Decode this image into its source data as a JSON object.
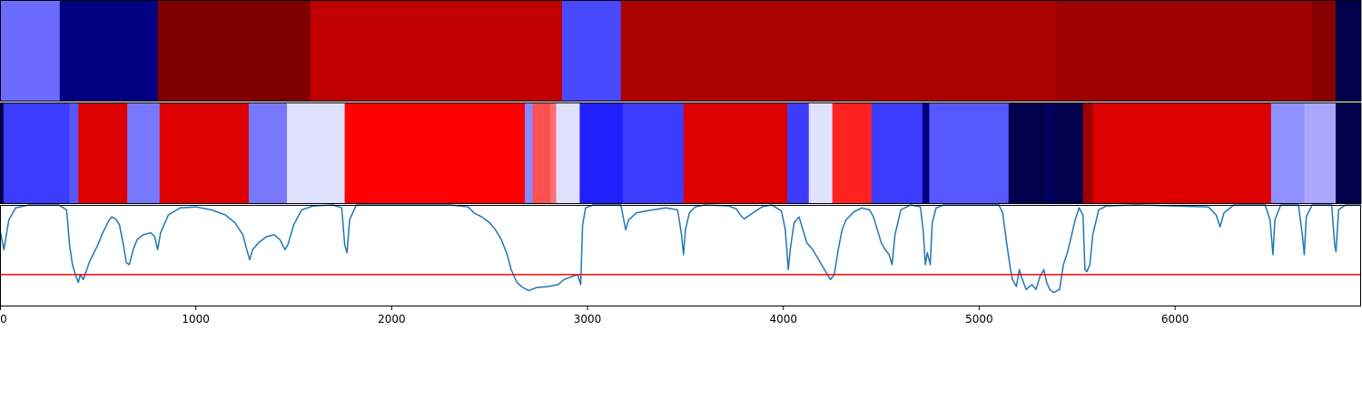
{
  "chart_data": {
    "type": "heatmap",
    "x_range": [
      0,
      6950
    ],
    "xticks": [
      "0",
      "1000",
      "2000",
      "3000",
      "4000",
      "5000",
      "6000"
    ],
    "xtick_values": [
      0,
      1000,
      2000,
      3000,
      4000,
      5000,
      6000
    ],
    "grid": false,
    "bands": [
      {
        "segments": [
          {
            "start": 0,
            "end": 305,
            "color": "#6b6bff"
          },
          {
            "start": 305,
            "end": 805,
            "color": "#000080"
          },
          {
            "start": 805,
            "end": 1585,
            "color": "#800000"
          },
          {
            "start": 1585,
            "end": 2870,
            "color": "#c00000"
          },
          {
            "start": 2870,
            "end": 3170,
            "color": "#4848ff"
          },
          {
            "start": 3170,
            "end": 5390,
            "color": "#ab0000"
          },
          {
            "start": 5390,
            "end": 6700,
            "color": "#9c0000"
          },
          {
            "start": 6700,
            "end": 6820,
            "color": "#880000"
          },
          {
            "start": 6820,
            "end": 6950,
            "color": "#00004c"
          }
        ]
      },
      {
        "segments": [
          {
            "start": 0,
            "end": 18,
            "color": "#000060"
          },
          {
            "start": 18,
            "end": 355,
            "color": "#3c3cff"
          },
          {
            "start": 355,
            "end": 400,
            "color": "#5858ff"
          },
          {
            "start": 400,
            "end": 650,
            "color": "#dc0000"
          },
          {
            "start": 650,
            "end": 815,
            "color": "#7878ff"
          },
          {
            "start": 815,
            "end": 1270,
            "color": "#dc0000"
          },
          {
            "start": 1270,
            "end": 1465,
            "color": "#7878ff"
          },
          {
            "start": 1465,
            "end": 1760,
            "color": "#e0e0ff"
          },
          {
            "start": 1760,
            "end": 2680,
            "color": "#ff0000"
          },
          {
            "start": 2680,
            "end": 2720,
            "color": "#8888ff"
          },
          {
            "start": 2720,
            "end": 2810,
            "color": "#ff5050"
          },
          {
            "start": 2810,
            "end": 2840,
            "color": "#ff7070"
          },
          {
            "start": 2840,
            "end": 2960,
            "color": "#e0e0ff"
          },
          {
            "start": 2960,
            "end": 3180,
            "color": "#2020ff"
          },
          {
            "start": 3180,
            "end": 3490,
            "color": "#3c3cff"
          },
          {
            "start": 3490,
            "end": 4020,
            "color": "#dc0000"
          },
          {
            "start": 4020,
            "end": 4130,
            "color": "#3c3cff"
          },
          {
            "start": 4130,
            "end": 4250,
            "color": "#e0e0ff"
          },
          {
            "start": 4250,
            "end": 4450,
            "color": "#ff2020"
          },
          {
            "start": 4450,
            "end": 4710,
            "color": "#3c3cff"
          },
          {
            "start": 4710,
            "end": 4745,
            "color": "#000080"
          },
          {
            "start": 4745,
            "end": 5150,
            "color": "#5858ff"
          },
          {
            "start": 5150,
            "end": 5340,
            "color": "#00004c"
          },
          {
            "start": 5340,
            "end": 5380,
            "color": "#000060"
          },
          {
            "start": 5380,
            "end": 5530,
            "color": "#00004c"
          },
          {
            "start": 5530,
            "end": 5580,
            "color": "#a00000"
          },
          {
            "start": 5580,
            "end": 6490,
            "color": "#dc0000"
          },
          {
            "start": 6490,
            "end": 6660,
            "color": "#9090ff"
          },
          {
            "start": 6660,
            "end": 6820,
            "color": "#a8a8ff"
          },
          {
            "start": 6820,
            "end": 6950,
            "color": "#00004c"
          }
        ]
      }
    ],
    "line_panel": {
      "ylim": [
        -0.02,
        1.0
      ],
      "threshold": 0.3,
      "line_color": "#1f77b4",
      "threshold_color": "#ff0000",
      "points": [
        [
          0,
          0.75
        ],
        [
          20,
          0.55
        ],
        [
          45,
          0.85
        ],
        [
          80,
          0.97
        ],
        [
          150,
          1.0
        ],
        [
          300,
          1.0
        ],
        [
          340,
          0.95
        ],
        [
          355,
          0.6
        ],
        [
          370,
          0.4
        ],
        [
          385,
          0.3
        ],
        [
          400,
          0.22
        ],
        [
          410,
          0.3
        ],
        [
          425,
          0.25
        ],
        [
          440,
          0.33
        ],
        [
          455,
          0.42
        ],
        [
          480,
          0.52
        ],
        [
          500,
          0.6
        ],
        [
          520,
          0.7
        ],
        [
          540,
          0.78
        ],
        [
          555,
          0.84
        ],
        [
          570,
          0.88
        ],
        [
          590,
          0.86
        ],
        [
          610,
          0.8
        ],
        [
          630,
          0.6
        ],
        [
          645,
          0.42
        ],
        [
          660,
          0.4
        ],
        [
          680,
          0.55
        ],
        [
          700,
          0.65
        ],
        [
          730,
          0.7
        ],
        [
          770,
          0.72
        ],
        [
          790,
          0.68
        ],
        [
          805,
          0.55
        ],
        [
          820,
          0.72
        ],
        [
          860,
          0.9
        ],
        [
          920,
          0.97
        ],
        [
          1000,
          0.98
        ],
        [
          1080,
          0.95
        ],
        [
          1150,
          0.9
        ],
        [
          1200,
          0.82
        ],
        [
          1240,
          0.7
        ],
        [
          1260,
          0.55
        ],
        [
          1275,
          0.45
        ],
        [
          1290,
          0.55
        ],
        [
          1320,
          0.62
        ],
        [
          1360,
          0.68
        ],
        [
          1400,
          0.7
        ],
        [
          1430,
          0.65
        ],
        [
          1455,
          0.55
        ],
        [
          1470,
          0.6
        ],
        [
          1500,
          0.8
        ],
        [
          1540,
          0.95
        ],
        [
          1600,
          0.99
        ],
        [
          1700,
          1.0
        ],
        [
          1745,
          0.97
        ],
        [
          1760,
          0.6
        ],
        [
          1772,
          0.52
        ],
        [
          1785,
          0.85
        ],
        [
          1820,
          1.0
        ],
        [
          2300,
          1.0
        ],
        [
          2390,
          0.98
        ],
        [
          2420,
          0.92
        ],
        [
          2460,
          0.88
        ],
        [
          2500,
          0.82
        ],
        [
          2530,
          0.75
        ],
        [
          2560,
          0.65
        ],
        [
          2590,
          0.5
        ],
        [
          2610,
          0.35
        ],
        [
          2640,
          0.22
        ],
        [
          2670,
          0.17
        ],
        [
          2700,
          0.14
        ],
        [
          2740,
          0.17
        ],
        [
          2800,
          0.18
        ],
        [
          2850,
          0.2
        ],
        [
          2880,
          0.25
        ],
        [
          2920,
          0.28
        ],
        [
          2950,
          0.3
        ],
        [
          2965,
          0.2
        ],
        [
          2975,
          0.8
        ],
        [
          2990,
          0.97
        ],
        [
          3030,
          1.0
        ],
        [
          3170,
          1.0
        ],
        [
          3180,
          0.9
        ],
        [
          3195,
          0.75
        ],
        [
          3210,
          0.85
        ],
        [
          3250,
          0.92
        ],
        [
          3300,
          0.94
        ],
        [
          3400,
          0.97
        ],
        [
          3460,
          0.95
        ],
        [
          3480,
          0.7
        ],
        [
          3490,
          0.5
        ],
        [
          3500,
          0.75
        ],
        [
          3520,
          0.92
        ],
        [
          3550,
          0.98
        ],
        [
          3600,
          1.0
        ],
        [
          3720,
          0.99
        ],
        [
          3760,
          0.96
        ],
        [
          3780,
          0.9
        ],
        [
          3800,
          0.86
        ],
        [
          3830,
          0.9
        ],
        [
          3860,
          0.94
        ],
        [
          3890,
          0.98
        ],
        [
          3940,
          1.0
        ],
        [
          3990,
          0.94
        ],
        [
          4010,
          0.75
        ],
        [
          4025,
          0.35
        ],
        [
          4035,
          0.55
        ],
        [
          4055,
          0.82
        ],
        [
          4080,
          0.88
        ],
        [
          4100,
          0.75
        ],
        [
          4120,
          0.62
        ],
        [
          4150,
          0.55
        ],
        [
          4180,
          0.45
        ],
        [
          4210,
          0.35
        ],
        [
          4240,
          0.25
        ],
        [
          4260,
          0.3
        ],
        [
          4280,
          0.55
        ],
        [
          4300,
          0.75
        ],
        [
          4320,
          0.85
        ],
        [
          4360,
          0.93
        ],
        [
          4400,
          0.97
        ],
        [
          4440,
          0.95
        ],
        [
          4460,
          0.88
        ],
        [
          4480,
          0.75
        ],
        [
          4500,
          0.62
        ],
        [
          4520,
          0.55
        ],
        [
          4540,
          0.5
        ],
        [
          4555,
          0.4
        ],
        [
          4570,
          0.7
        ],
        [
          4600,
          0.95
        ],
        [
          4650,
          1.0
        ],
        [
          4700,
          0.98
        ],
        [
          4715,
          0.72
        ],
        [
          4725,
          0.4
        ],
        [
          4735,
          0.52
        ],
        [
          4750,
          0.4
        ],
        [
          4760,
          0.82
        ],
        [
          4780,
          0.97
        ],
        [
          4820,
          1.0
        ],
        [
          5100,
          1.0
        ],
        [
          5120,
          0.92
        ],
        [
          5140,
          0.62
        ],
        [
          5160,
          0.35
        ],
        [
          5170,
          0.25
        ],
        [
          5190,
          0.18
        ],
        [
          5205,
          0.35
        ],
        [
          5215,
          0.28
        ],
        [
          5240,
          0.15
        ],
        [
          5270,
          0.2
        ],
        [
          5290,
          0.15
        ],
        [
          5310,
          0.28
        ],
        [
          5330,
          0.35
        ],
        [
          5345,
          0.22
        ],
        [
          5360,
          0.15
        ],
        [
          5380,
          0.12
        ],
        [
          5410,
          0.15
        ],
        [
          5430,
          0.4
        ],
        [
          5450,
          0.52
        ],
        [
          5470,
          0.68
        ],
        [
          5490,
          0.85
        ],
        [
          5510,
          0.97
        ],
        [
          5530,
          0.9
        ],
        [
          5540,
          0.35
        ],
        [
          5550,
          0.33
        ],
        [
          5565,
          0.4
        ],
        [
          5580,
          0.7
        ],
        [
          5610,
          0.95
        ],
        [
          5650,
          0.99
        ],
        [
          5800,
          1.0
        ],
        [
          6170,
          0.98
        ],
        [
          6210,
          0.9
        ],
        [
          6230,
          0.78
        ],
        [
          6250,
          0.92
        ],
        [
          6300,
          1.0
        ],
        [
          6460,
          1.0
        ],
        [
          6485,
          0.85
        ],
        [
          6500,
          0.5
        ],
        [
          6510,
          0.85
        ],
        [
          6540,
          1.0
        ],
        [
          6630,
          1.0
        ],
        [
          6650,
          0.7
        ],
        [
          6660,
          0.5
        ],
        [
          6670,
          0.88
        ],
        [
          6700,
          1.0
        ],
        [
          6800,
          1.0
        ],
        [
          6815,
          0.6
        ],
        [
          6822,
          0.53
        ],
        [
          6835,
          0.95
        ],
        [
          6870,
          1.0
        ],
        [
          6950,
          1.0
        ]
      ]
    }
  }
}
